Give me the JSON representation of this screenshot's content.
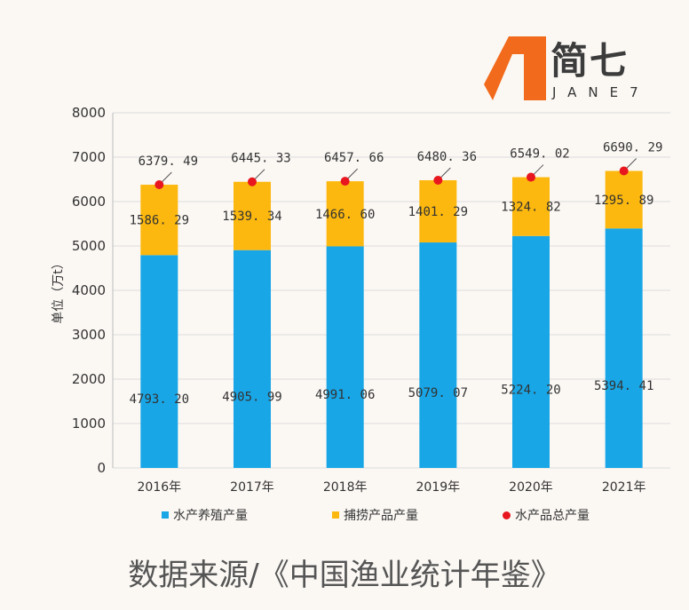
{
  "logo": {
    "name": "简七",
    "sub": "JANE7"
  },
  "source": "数据来源/《中国渔业统计年鉴》",
  "colors": {
    "aquaculture": "#18a6e6",
    "capture": "#fcb80e",
    "total": "#e8161e"
  },
  "chart_data": {
    "type": "bar",
    "stacked": true,
    "categories": [
      "2016年",
      "2017年",
      "2018年",
      "2019年",
      "2020年",
      "2021年"
    ],
    "series": [
      {
        "name": "水产养殖产量",
        "values": [
          4793.2,
          4905.99,
          4991.06,
          5079.07,
          5224.2,
          5394.41
        ],
        "labels": [
          "4793. 20",
          "4905. 99",
          "4991. 06",
          "5079. 07",
          "5224. 20",
          "5394. 41"
        ]
      },
      {
        "name": "捕捞产品产量",
        "values": [
          1586.29,
          1539.34,
          1466.6,
          1401.29,
          1324.82,
          1295.89
        ],
        "labels": [
          "1586. 29",
          "1539. 34",
          "1466. 60",
          "1401. 29",
          "1324. 82",
          "1295. 89"
        ]
      },
      {
        "name": "水产品总产量",
        "type": "point",
        "values": [
          6379.49,
          6445.33,
          6457.66,
          6480.36,
          6549.02,
          6690.29
        ],
        "labels": [
          "6379. 49",
          "6445. 33",
          "6457. 66",
          "6480. 36",
          "6549. 02",
          "6690. 29"
        ]
      }
    ],
    "ylabel": "单位（万t）",
    "ylim": [
      0,
      8000
    ],
    "yticks": [
      "0",
      "1000",
      "2000",
      "3000",
      "4000",
      "5000",
      "6000",
      "7000",
      "8000"
    ],
    "grid": true,
    "legend": "bottom"
  }
}
